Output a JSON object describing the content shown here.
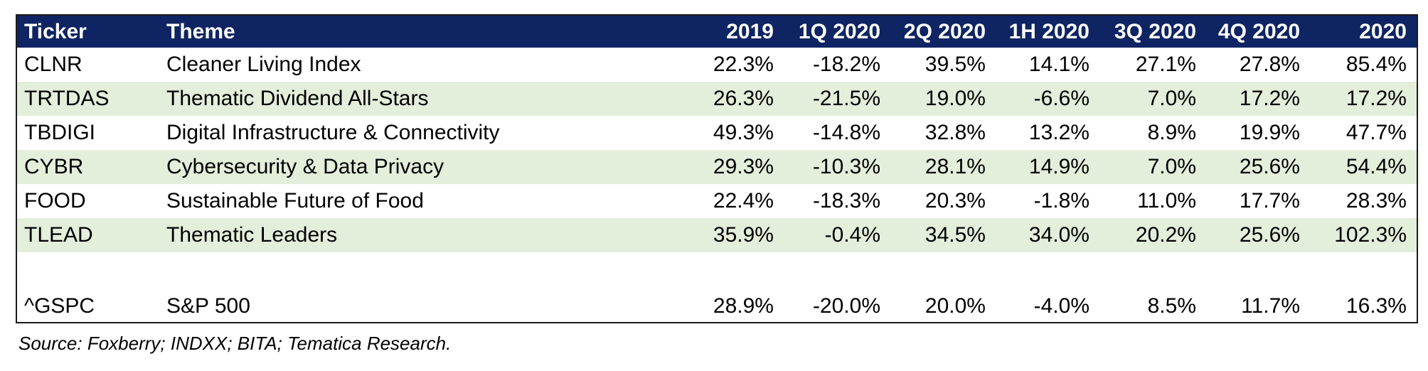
{
  "table": {
    "headers": [
      "Ticker",
      "Theme",
      "2019",
      "1Q 2020",
      "2Q 2020",
      "1H 2020",
      "3Q 2020",
      "4Q 2020",
      "2020"
    ],
    "rows": [
      {
        "ticker": "CLNR",
        "theme": "Cleaner Living Index",
        "values": [
          "22.3%",
          "-18.2%",
          "39.5%",
          "14.1%",
          "27.1%",
          "27.8%",
          "85.4%"
        ]
      },
      {
        "ticker": "TRTDAS",
        "theme": "Thematic Dividend All-Stars",
        "values": [
          "26.3%",
          "-21.5%",
          "19.0%",
          "-6.6%",
          "7.0%",
          "17.2%",
          "17.2%"
        ]
      },
      {
        "ticker": "TBDIGI",
        "theme": "Digital Infrastructure & Connectivity",
        "values": [
          "49.3%",
          "-14.8%",
          "32.8%",
          "13.2%",
          "8.9%",
          "19.9%",
          "47.7%"
        ]
      },
      {
        "ticker": "CYBR",
        "theme": "Cybersecurity & Data Privacy",
        "values": [
          "29.3%",
          "-10.3%",
          "28.1%",
          "14.9%",
          "7.0%",
          "25.6%",
          "54.4%"
        ]
      },
      {
        "ticker": "FOOD",
        "theme": "Sustainable Future of Food",
        "values": [
          "22.4%",
          "-18.3%",
          "20.3%",
          "-1.8%",
          "11.0%",
          "17.7%",
          "28.3%"
        ]
      },
      {
        "ticker": "TLEAD",
        "theme": "Thematic Leaders",
        "values": [
          "35.9%",
          "-0.4%",
          "34.5%",
          "34.0%",
          "20.2%",
          "25.6%",
          "102.3%"
        ]
      }
    ],
    "benchmark": {
      "ticker": "^GSPC",
      "theme": "S&P 500",
      "values": [
        "28.9%",
        "-20.0%",
        "20.0%",
        "-4.0%",
        "8.5%",
        "11.7%",
        "16.3%"
      ]
    }
  },
  "source_note": "Source: Foxberry; INDXX; BITA; Tematica Research.",
  "colors": {
    "header_bg": "#0f2463",
    "row_shade": "#e3eedb"
  }
}
